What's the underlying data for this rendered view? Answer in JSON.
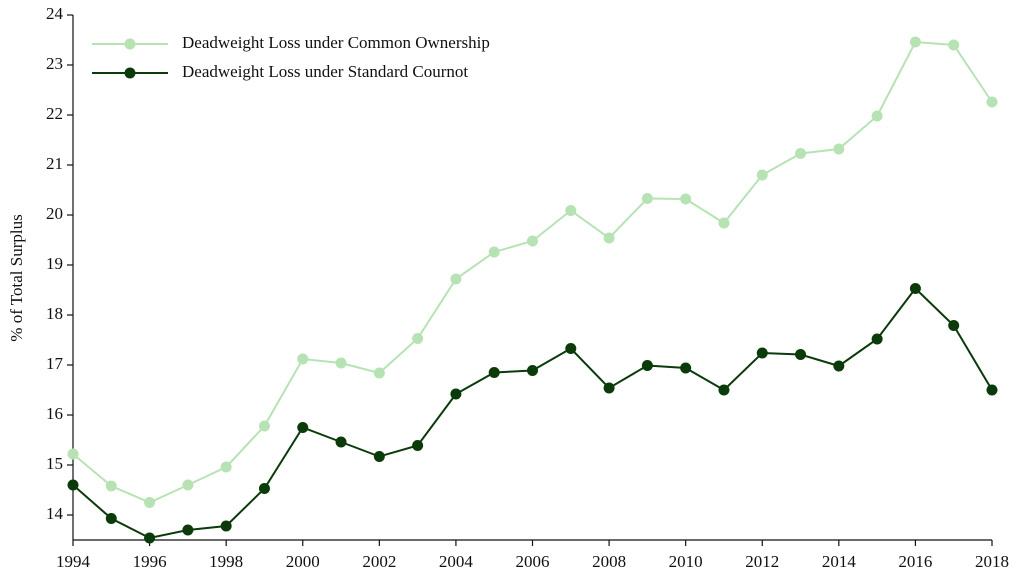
{
  "chart_data": {
    "type": "line",
    "y_label": "% of Total Surplus",
    "x": [
      1994,
      1995,
      1996,
      1997,
      1998,
      1999,
      2000,
      2001,
      2002,
      2003,
      2004,
      2005,
      2006,
      2007,
      2008,
      2009,
      2010,
      2011,
      2012,
      2013,
      2014,
      2015,
      2016,
      2017,
      2018
    ],
    "series": [
      {
        "name": "Deadweight Loss under Common Ownership",
        "color": "#b7e3b4",
        "values": [
          15.22,
          14.58,
          14.25,
          14.6,
          14.96,
          15.78,
          17.12,
          17.04,
          16.84,
          17.53,
          18.72,
          19.26,
          19.48,
          20.09,
          19.54,
          20.33,
          20.32,
          19.84,
          20.8,
          21.23,
          21.32,
          21.98,
          23.46,
          23.4,
          22.26
        ]
      },
      {
        "name": "Deadweight Loss under Standard Cournot",
        "color": "#0b3a0b",
        "values": [
          14.6,
          13.93,
          13.54,
          13.7,
          13.78,
          14.53,
          15.75,
          15.46,
          15.17,
          15.39,
          16.42,
          16.85,
          16.89,
          17.33,
          16.54,
          16.99,
          16.94,
          16.5,
          17.24,
          17.21,
          16.98,
          17.52,
          18.53,
          17.79,
          16.5
        ]
      }
    ],
    "xlim": [
      1994,
      2018
    ],
    "xticks": [
      1994,
      1996,
      1998,
      2000,
      2002,
      2004,
      2006,
      2008,
      2010,
      2012,
      2014,
      2016,
      2018
    ],
    "ylim": [
      13.5,
      24
    ],
    "yticks": [
      14,
      15,
      16,
      17,
      18,
      19,
      20,
      21,
      22,
      23,
      24
    ],
    "legend": "upper left"
  }
}
